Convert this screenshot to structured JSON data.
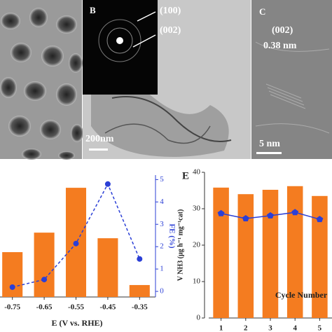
{
  "panels": {
    "b_label": "B",
    "b_ring1": "(100)",
    "b_ring2": "(002)",
    "b_scale": "200nm",
    "c_label": "C",
    "c_plane": "(002)",
    "c_spacing": "0.38 nm",
    "c_scale": "5 nm"
  },
  "chart_data": [
    {
      "type": "bar",
      "letter": null,
      "categories": [
        "-0.75",
        "-0.65",
        "-0.55",
        "-0.45",
        "-0.35"
      ],
      "xlabel": "E (V vs. RHE)",
      "y2label": "FE (%)",
      "ylim": [
        0,
        50
      ],
      "yticks": [],
      "y2lim": [
        -0.25,
        5.2
      ],
      "y2ticks": [
        0,
        1,
        2,
        3,
        4,
        5
      ],
      "series": [
        {
          "type": "bar",
          "color": "#f47c20",
          "values": [
            18.4,
            26.4,
            44.8,
            24.1,
            4.9
          ]
        },
        {
          "type": "line",
          "axis": "y2",
          "color": "#2b3fd6",
          "values": [
            0.19,
            0.53,
            2.14,
            4.8,
            1.45
          ]
        }
      ]
    },
    {
      "type": "bar",
      "letter": "E",
      "categories": [
        "1",
        "2",
        "3",
        "4",
        "5"
      ],
      "xlabel": "Cycle Number",
      "ylabel": "V NH3 (μg h⁻¹ mg⁻¹cat)",
      "ylim": [
        0,
        40
      ],
      "yticks": [
        0,
        10,
        20,
        30,
        40
      ],
      "series": [
        {
          "type": "bar",
          "color": "#f47c20",
          "values": [
            35.8,
            34.0,
            35.2,
            36.2,
            33.5
          ]
        },
        {
          "type": "line",
          "color": "#2b3fd6",
          "values": [
            28.7,
            27.3,
            28.1,
            29.0,
            27.1
          ]
        }
      ]
    }
  ]
}
